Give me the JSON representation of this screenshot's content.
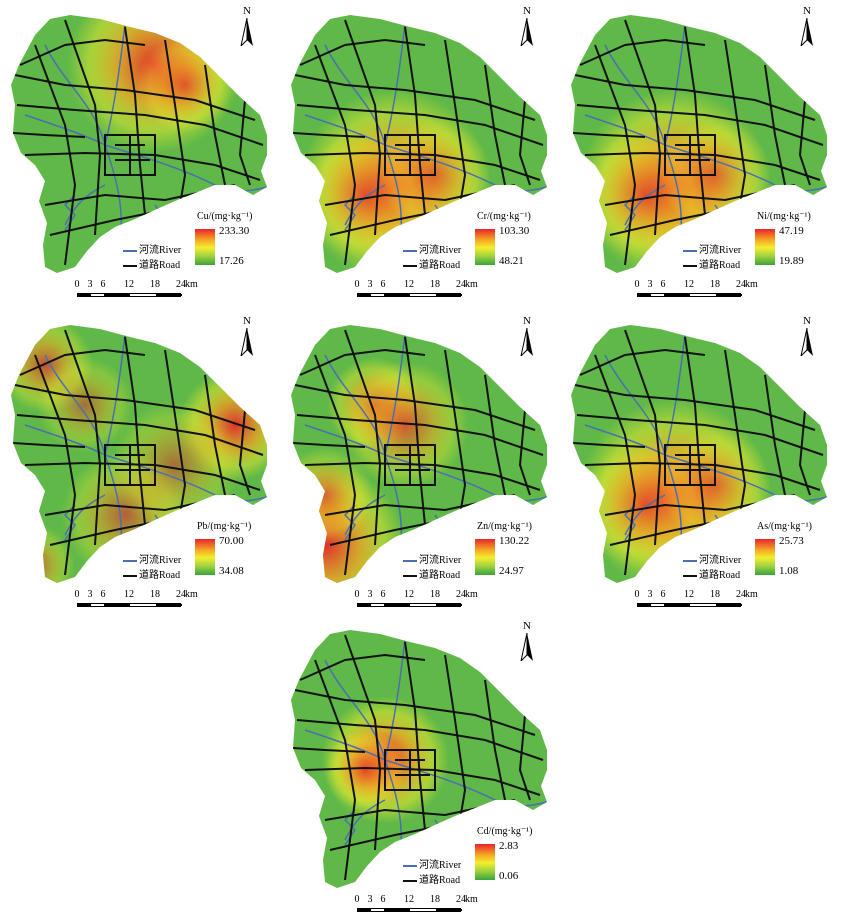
{
  "panels": [
    {
      "id": "cu",
      "label": "Cu/(mg·kg⁻¹)",
      "max": "233.30",
      "min": "17.26",
      "hot": "north-east"
    },
    {
      "id": "cr",
      "label": "Cr/(mg·kg⁻¹)",
      "max": "103.30",
      "min": "48.21",
      "hot": "south-center"
    },
    {
      "id": "ni",
      "label": "Ni/(mg·kg⁻¹)",
      "max": "47.19",
      "min": "19.89",
      "hot": "south-center"
    },
    {
      "id": "pb",
      "label": "Pb/(mg·kg⁻¹)",
      "max": "70.00",
      "min": "34.08",
      "hot": "mixed"
    },
    {
      "id": "zn",
      "label": "Zn/(mg·kg⁻¹)",
      "max": "130.22",
      "min": "24.97",
      "hot": "west"
    },
    {
      "id": "as",
      "label": "As/(mg·kg⁻¹)",
      "max": "25.73",
      "min": "1.08",
      "hot": "south-center"
    },
    {
      "id": "cd",
      "label": "Cd/(mg·kg⁻¹)",
      "max": "2.83",
      "min": "0.06",
      "hot": "center"
    }
  ],
  "legend": {
    "river": "河流River",
    "road": "道路Road"
  },
  "north": "N",
  "scale": {
    "ticks": [
      "0",
      "3",
      "6",
      "12",
      "18",
      "24"
    ],
    "unit": "km"
  },
  "colors": {
    "high": "#e8232a",
    "mid": "#f4ee2c",
    "low": "#3aa33b",
    "river": "#4a6fb3",
    "road": "#111111"
  }
}
